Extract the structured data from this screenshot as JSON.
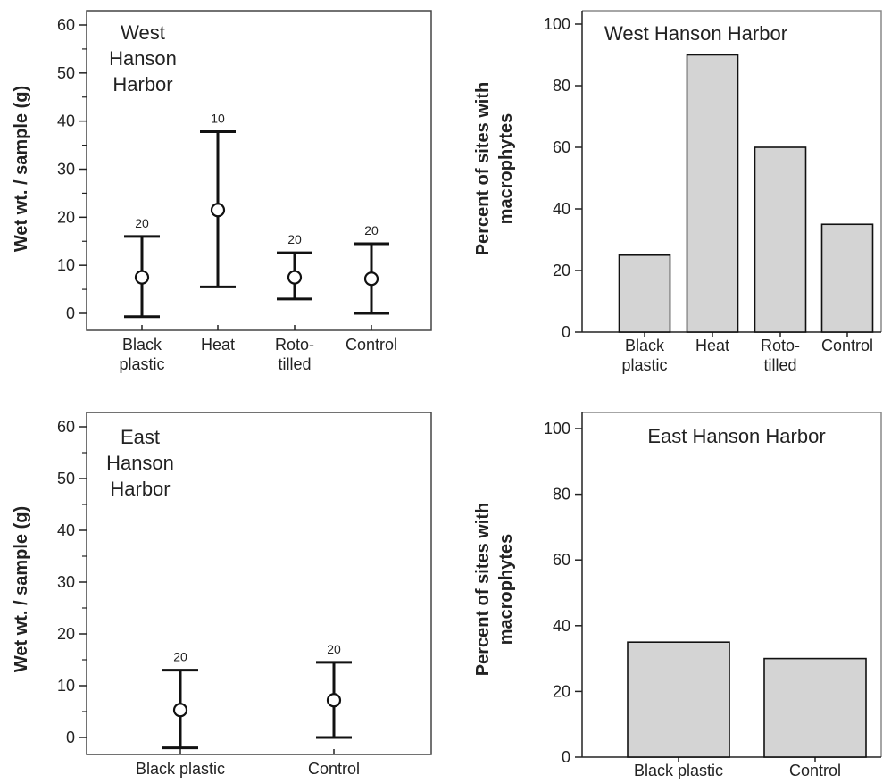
{
  "chart_data": [
    {
      "id": "p1",
      "type": "errorbar",
      "title": [
        "West",
        "Hanson",
        "Harbor"
      ],
      "ylabel": "Wet wt. / sample (g)",
      "ylim": [
        0,
        60
      ],
      "yticks": [
        "0",
        "10",
        "20",
        "30",
        "40",
        "50",
        "60"
      ],
      "categories": [
        [
          "Black",
          "plastic"
        ],
        [
          "Heat"
        ],
        [
          "Roto-",
          "tilled"
        ],
        [
          "Control"
        ]
      ],
      "points": [
        {
          "mean": 7.5,
          "lower": -0.7,
          "upper": 16,
          "n": "20"
        },
        {
          "mean": 21.5,
          "lower": 5.5,
          "upper": 37.8,
          "n": "10"
        },
        {
          "mean": 7.5,
          "lower": 3,
          "upper": 12.6,
          "n": "20"
        },
        {
          "mean": 7.2,
          "lower": 0,
          "upper": 14.5,
          "n": "20"
        }
      ]
    },
    {
      "id": "p2",
      "type": "bar",
      "title": [
        "West Hanson Harbor"
      ],
      "ylabel": [
        "Percent of sites with",
        "macrophytes"
      ],
      "ylim": [
        0,
        100
      ],
      "yticks": [
        "0",
        "20",
        "40",
        "60",
        "80",
        "100"
      ],
      "categories": [
        [
          "Black",
          "plastic"
        ],
        [
          "Heat"
        ],
        [
          "Roto-",
          "tilled"
        ],
        [
          "Control"
        ]
      ],
      "values": [
        25,
        90,
        60,
        35
      ],
      "bar_color": "#d4d4d4"
    },
    {
      "id": "p3",
      "type": "errorbar",
      "title": [
        "East",
        "Hanson",
        "Harbor"
      ],
      "ylabel": "Wet wt. / sample (g)",
      "ylim": [
        0,
        60
      ],
      "yticks": [
        "0",
        "10",
        "20",
        "30",
        "40",
        "50",
        "60"
      ],
      "categories": [
        [
          "Black plastic"
        ],
        [
          "Control"
        ]
      ],
      "points": [
        {
          "mean": 5.3,
          "lower": -2,
          "upper": 13,
          "n": "20"
        },
        {
          "mean": 7.2,
          "lower": 0,
          "upper": 14.5,
          "n": "20"
        }
      ]
    },
    {
      "id": "p4",
      "type": "bar",
      "title": [
        "East Hanson Harbor"
      ],
      "ylabel": [
        "Percent of sites with",
        "macrophytes"
      ],
      "ylim": [
        0,
        100
      ],
      "yticks": [
        "0",
        "20",
        "40",
        "60",
        "80",
        "100"
      ],
      "categories": [
        [
          "Black plastic"
        ],
        [
          "Control"
        ]
      ],
      "values": [
        35,
        30
      ],
      "bar_color": "#d4d4d4"
    }
  ]
}
